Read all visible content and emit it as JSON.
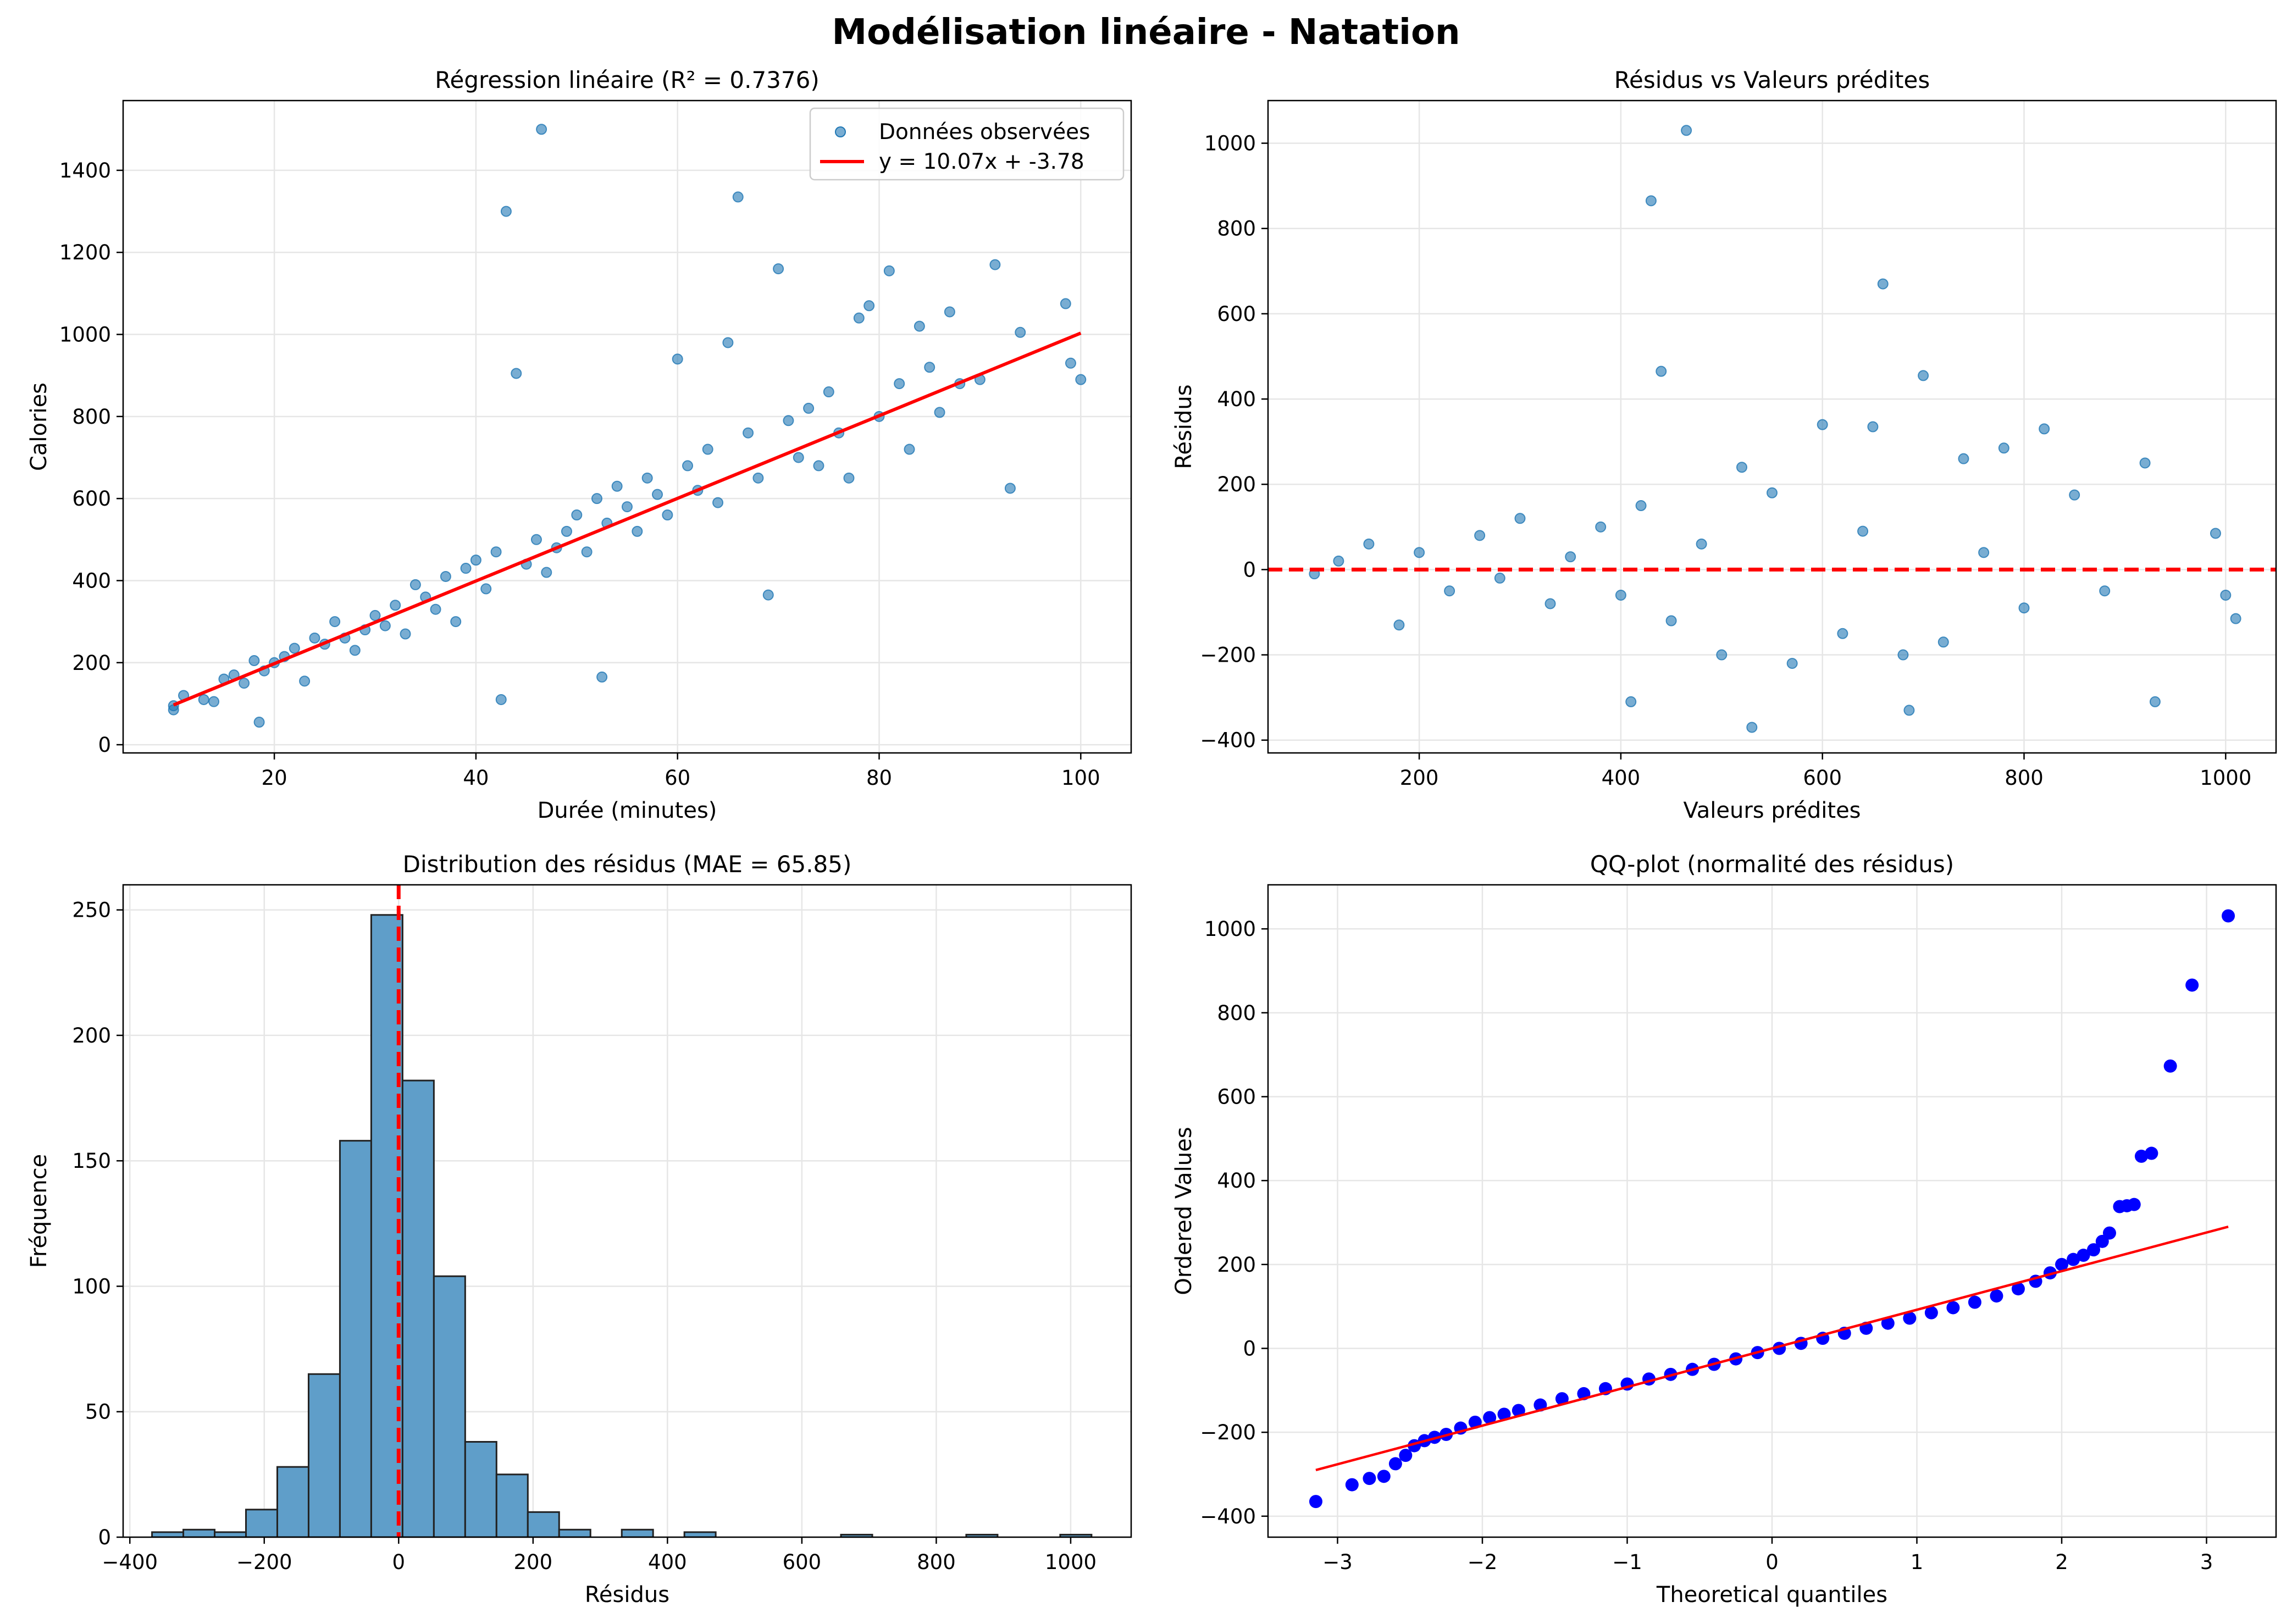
{
  "figure": {
    "title": "Modélisation linéaire - Natation"
  },
  "colors": {
    "scatter": "#1f77b4",
    "regression_line": "#ff0000",
    "hist_fill": "#5f9ec9",
    "qq_points": "#0000ff",
    "grid": "#e6e6e6"
  },
  "chart_data": [
    {
      "id": "regression",
      "type": "scatter",
      "title": "Régression linéaire (R² = 0.7376)",
      "xlabel": "Durée (minutes)",
      "ylabel": "Calories",
      "xlim": [
        5,
        105
      ],
      "ylim": [
        -20,
        1570
      ],
      "xticks": [
        20,
        40,
        60,
        80,
        100
      ],
      "yticks": [
        0,
        200,
        400,
        600,
        800,
        1000,
        1200,
        1400
      ],
      "grid": true,
      "legend": {
        "placement": "upper right",
        "entries": [
          "Données observées",
          "y = 10.07x + -3.78"
        ]
      },
      "regression": {
        "slope": 10.07,
        "intercept": -3.78,
        "x_range": [
          10,
          100
        ]
      },
      "series": [
        {
          "name": "Données observées",
          "points": [
            [
              10,
              95
            ],
            [
              10,
              85
            ],
            [
              11,
              120
            ],
            [
              14,
              105
            ],
            [
              13,
              110
            ],
            [
              15,
              160
            ],
            [
              16,
              170
            ],
            [
              17,
              150
            ],
            [
              18,
              205
            ],
            [
              18.5,
              55
            ],
            [
              19,
              180
            ],
            [
              20,
              200
            ],
            [
              21,
              215
            ],
            [
              22,
              235
            ],
            [
              23,
              155
            ],
            [
              24,
              260
            ],
            [
              25,
              245
            ],
            [
              26,
              300
            ],
            [
              27,
              260
            ],
            [
              28,
              230
            ],
            [
              29,
              280
            ],
            [
              30,
              315
            ],
            [
              31,
              290
            ],
            [
              32,
              340
            ],
            [
              33,
              270
            ],
            [
              34,
              390
            ],
            [
              35,
              360
            ],
            [
              36,
              330
            ],
            [
              37,
              410
            ],
            [
              38,
              300
            ],
            [
              39,
              430
            ],
            [
              40,
              450
            ],
            [
              41,
              380
            ],
            [
              42,
              470
            ],
            [
              42.5,
              110
            ],
            [
              43,
              1300
            ],
            [
              44,
              905
            ],
            [
              45,
              440
            ],
            [
              46,
              500
            ],
            [
              46.5,
              1500
            ],
            [
              47,
              420
            ],
            [
              48,
              480
            ],
            [
              49,
              520
            ],
            [
              50,
              560
            ],
            [
              51,
              470
            ],
            [
              52,
              600
            ],
            [
              52.5,
              165
            ],
            [
              53,
              540
            ],
            [
              54,
              630
            ],
            [
              55,
              580
            ],
            [
              56,
              520
            ],
            [
              57,
              650
            ],
            [
              58,
              610
            ],
            [
              59,
              560
            ],
            [
              60,
              940
            ],
            [
              61,
              680
            ],
            [
              62,
              620
            ],
            [
              63,
              720
            ],
            [
              64,
              590
            ],
            [
              65,
              980
            ],
            [
              66,
              1335
            ],
            [
              67,
              760
            ],
            [
              68,
              650
            ],
            [
              69,
              365
            ],
            [
              70,
              1160
            ],
            [
              71,
              790
            ],
            [
              72,
              700
            ],
            [
              73,
              820
            ],
            [
              74,
              680
            ],
            [
              75,
              860
            ],
            [
              76,
              760
            ],
            [
              77,
              650
            ],
            [
              78,
              1040
            ],
            [
              79,
              1070
            ],
            [
              80,
              800
            ],
            [
              81,
              1155
            ],
            [
              82,
              880
            ],
            [
              83,
              720
            ],
            [
              84,
              1020
            ],
            [
              85,
              920
            ],
            [
              86,
              810
            ],
            [
              87,
              1055
            ],
            [
              88,
              880
            ],
            [
              90,
              890
            ],
            [
              91.5,
              1170
            ],
            [
              93,
              625
            ],
            [
              94,
              1005
            ],
            [
              98.5,
              1075
            ],
            [
              99,
              930
            ],
            [
              100,
              890
            ]
          ]
        }
      ]
    },
    {
      "id": "residuals-vs-predicted",
      "type": "scatter",
      "title": "Résidus vs Valeurs prédites",
      "xlabel": "Valeurs prédites",
      "ylabel": "Résidus",
      "xlim": [
        50,
        1050
      ],
      "ylim": [
        -430,
        1100
      ],
      "xticks": [
        200,
        400,
        600,
        800,
        1000
      ],
      "yticks": [
        -400,
        -200,
        0,
        200,
        400,
        600,
        800,
        1000
      ],
      "grid": true,
      "reference_line": 0,
      "series": [
        {
          "name": "",
          "points": [
            [
              96,
              -10
            ],
            [
              120,
              20
            ],
            [
              150,
              60
            ],
            [
              180,
              -130
            ],
            [
              200,
              40
            ],
            [
              230,
              -50
            ],
            [
              260,
              80
            ],
            [
              280,
              -20
            ],
            [
              300,
              120
            ],
            [
              330,
              -80
            ],
            [
              350,
              30
            ],
            [
              380,
              100
            ],
            [
              400,
              -60
            ],
            [
              410,
              -310
            ],
            [
              420,
              150
            ],
            [
              430,
              865
            ],
            [
              440,
              465
            ],
            [
              465,
              1030
            ],
            [
              450,
              -120
            ],
            [
              480,
              60
            ],
            [
              500,
              -200
            ],
            [
              520,
              240
            ],
            [
              530,
              -370
            ],
            [
              550,
              180
            ],
            [
              570,
              -220
            ],
            [
              600,
              340
            ],
            [
              620,
              -150
            ],
            [
              640,
              90
            ],
            [
              650,
              335
            ],
            [
              660,
              670
            ],
            [
              680,
              -200
            ],
            [
              686,
              -330
            ],
            [
              700,
              455
            ],
            [
              720,
              -170
            ],
            [
              740,
              260
            ],
            [
              760,
              40
            ],
            [
              780,
              285
            ],
            [
              800,
              -90
            ],
            [
              820,
              330
            ],
            [
              850,
              175
            ],
            [
              880,
              -50
            ],
            [
              920,
              250
            ],
            [
              930,
              -310
            ],
            [
              990,
              85
            ],
            [
              1000,
              -60
            ],
            [
              1010,
              -115
            ]
          ]
        }
      ]
    },
    {
      "id": "residual-histogram",
      "type": "bar",
      "title": "Distribution des résidus (MAE = 65.85)",
      "xlabel": "Résidus",
      "ylabel": "Fréquence",
      "xlim": [
        -410,
        1090
      ],
      "ylim": [
        0,
        260
      ],
      "xticks": [
        -400,
        -200,
        0,
        200,
        400,
        600,
        800,
        1000
      ],
      "yticks": [
        0,
        50,
        100,
        150,
        200,
        250
      ],
      "grid": true,
      "reference_line": 0,
      "bin_start": -367,
      "bin_width": 46.6,
      "values": [
        2,
        3,
        2,
        11,
        28,
        65,
        158,
        248,
        182,
        104,
        38,
        25,
        10,
        3,
        0,
        3,
        0,
        2,
        0,
        0,
        0,
        0,
        1,
        0,
        0,
        0,
        1,
        0,
        0,
        1
      ]
    },
    {
      "id": "qq-plot",
      "type": "scatter",
      "title": "QQ-plot (normalité des résidus)",
      "xlabel": "Theoretical quantiles",
      "ylabel": "Ordered Values",
      "xlim": [
        -3.48,
        3.48
      ],
      "ylim": [
        -450,
        1105
      ],
      "xticks": [
        -3,
        -2,
        -1,
        0,
        1,
        2,
        3
      ],
      "yticks": [
        -400,
        -200,
        0,
        200,
        400,
        600,
        800,
        1000
      ],
      "grid": true,
      "fit_line": {
        "x": [
          -3.15,
          3.15
        ],
        "y": [
          -290,
          290
        ]
      },
      "series": [
        {
          "name": "",
          "points": [
            [
              -3.15,
              -365
            ],
            [
              -2.9,
              -325
            ],
            [
              -2.78,
              -310
            ],
            [
              -2.68,
              -305
            ],
            [
              -2.6,
              -275
            ],
            [
              -2.53,
              -255
            ],
            [
              -2.47,
              -232
            ],
            [
              -2.4,
              -220
            ],
            [
              -2.33,
              -212
            ],
            [
              -2.25,
              -205
            ],
            [
              -2.15,
              -190
            ],
            [
              -2.05,
              -176
            ],
            [
              -1.95,
              -165
            ],
            [
              -1.85,
              -157
            ],
            [
              -1.75,
              -148
            ],
            [
              -1.6,
              -135
            ],
            [
              -1.45,
              -120
            ],
            [
              -1.3,
              -108
            ],
            [
              -1.15,
              -96
            ],
            [
              -1.0,
              -85
            ],
            [
              -0.85,
              -73
            ],
            [
              -0.7,
              -62
            ],
            [
              -0.55,
              -50
            ],
            [
              -0.4,
              -38
            ],
            [
              -0.25,
              -25
            ],
            [
              -0.1,
              -10
            ],
            [
              0.05,
              0
            ],
            [
              0.2,
              12
            ],
            [
              0.35,
              24
            ],
            [
              0.5,
              36
            ],
            [
              0.65,
              48
            ],
            [
              0.8,
              60
            ],
            [
              0.95,
              72
            ],
            [
              1.1,
              85
            ],
            [
              1.25,
              97
            ],
            [
              1.4,
              110
            ],
            [
              1.55,
              125
            ],
            [
              1.7,
              142
            ],
            [
              1.82,
              160
            ],
            [
              1.92,
              180
            ],
            [
              2.0,
              200
            ],
            [
              2.08,
              212
            ],
            [
              2.15,
              222
            ],
            [
              2.22,
              235
            ],
            [
              2.28,
              255
            ],
            [
              2.33,
              275
            ],
            [
              2.4,
              338
            ],
            [
              2.45,
              340
            ],
            [
              2.5,
              343
            ],
            [
              2.55,
              458
            ],
            [
              2.62,
              465
            ],
            [
              2.75,
              673
            ],
            [
              2.9,
              866
            ],
            [
              3.15,
              1031
            ]
          ]
        }
      ]
    }
  ]
}
